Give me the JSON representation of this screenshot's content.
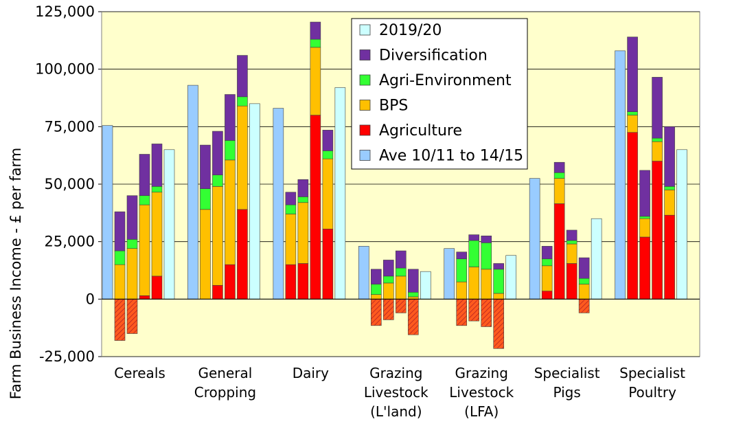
{
  "chart_data": {
    "type": "bar",
    "title": "",
    "ylabel": "Farm Business Income - £ per farm",
    "xlabel": "",
    "ylim": [
      -25000,
      125000
    ],
    "yticks": [
      -25000,
      0,
      25000,
      50000,
      75000,
      100000,
      125000
    ],
    "ytick_labels": [
      "-25,000",
      "0",
      "25,000",
      "50,000",
      "75,000",
      "100,000",
      "125,000"
    ],
    "grid": "horizontal",
    "legend_position": "top-center",
    "background_color": "#FFFFCC",
    "colors": {
      "avg": "#99CCFF",
      "agriculture": "#FF0000",
      "agriculture_negative": "#FF5A1E",
      "bps": "#FFC000",
      "agri_env": "#33FF33",
      "diversification": "#7030A0",
      "y2019": "#CCFFFF"
    },
    "legend": [
      {
        "key": "y2019",
        "label": "2019/20"
      },
      {
        "key": "diversification",
        "label": "Diversification"
      },
      {
        "key": "agri_env",
        "label": "Agri-Environment"
      },
      {
        "key": "bps",
        "label": "BPS"
      },
      {
        "key": "agriculture",
        "label": "Agriculture"
      },
      {
        "key": "avg",
        "label": "Ave 10/11 to 14/15"
      }
    ],
    "groups": [
      {
        "label_lines": [
          "Cereals"
        ],
        "average_10_11_to_14_15": 75500,
        "stacks": [
          {
            "agriculture": -18000,
            "bps": 15000,
            "agri_env": 6000,
            "diversification": 17000
          },
          {
            "agriculture": -15000,
            "bps": 22000,
            "agri_env": 4000,
            "diversification": 19000
          },
          {
            "agriculture": 1500,
            "bps": 39500,
            "agri_env": 4000,
            "diversification": 18000
          },
          {
            "agriculture": 10000,
            "bps": 36500,
            "agri_env": 2500,
            "diversification": 18500
          }
        ],
        "value_2019_20": 65000
      },
      {
        "label_lines": [
          "General",
          "Cropping"
        ],
        "average_10_11_to_14_15": 93000,
        "stacks": [
          {
            "agriculture": 0,
            "bps": 39000,
            "agri_env": 9000,
            "diversification": 19000
          },
          {
            "agriculture": 6000,
            "bps": 43000,
            "agri_env": 5000,
            "diversification": 19000
          },
          {
            "agriculture": 15000,
            "bps": 45500,
            "agri_env": 8500,
            "diversification": 20000
          },
          {
            "agriculture": 39000,
            "bps": 45000,
            "agri_env": 4000,
            "diversification": 18000
          }
        ],
        "value_2019_20": 85000
      },
      {
        "label_lines": [
          "Dairy"
        ],
        "average_10_11_to_14_15": 83000,
        "stacks": [
          {
            "agriculture": 15000,
            "bps": 22000,
            "agri_env": 4000,
            "diversification": 5500
          },
          {
            "agriculture": 15500,
            "bps": 26500,
            "agri_env": 2500,
            "diversification": 7500
          },
          {
            "agriculture": 80000,
            "bps": 29500,
            "agri_env": 3500,
            "diversification": 7500
          },
          {
            "agriculture": 30500,
            "bps": 30500,
            "agri_env": 3500,
            "diversification": 9000
          }
        ],
        "value_2019_20": 92000
      },
      {
        "label_lines": [
          "Grazing",
          "Livestock",
          "(L'land)"
        ],
        "average_10_11_to_14_15": 23000,
        "stacks": [
          {
            "agriculture": -11500,
            "bps": 2000,
            "agri_env": 4500,
            "diversification": 6500
          },
          {
            "agriculture": -9000,
            "bps": 7000,
            "agri_env": 3000,
            "diversification": 7000
          },
          {
            "agriculture": -6000,
            "bps": 10000,
            "agri_env": 3500,
            "diversification": 7500
          },
          {
            "agriculture": -15500,
            "bps": 1000,
            "agri_env": 2000,
            "diversification": 10000
          }
        ],
        "value_2019_20": 12000
      },
      {
        "label_lines": [
          "Grazing",
          "Livestock",
          "(LFA)"
        ],
        "average_10_11_to_14_15": 22000,
        "stacks": [
          {
            "agriculture": -11500,
            "bps": 7500,
            "agri_env": 10000,
            "diversification": 3000
          },
          {
            "agriculture": -9500,
            "bps": 14000,
            "agri_env": 11500,
            "diversification": 2500
          },
          {
            "agriculture": -12000,
            "bps": 13000,
            "agri_env": 11500,
            "diversification": 3000
          },
          {
            "agriculture": -21500,
            "bps": 2500,
            "agri_env": 10500,
            "diversification": 2500
          }
        ],
        "value_2019_20": 19000
      },
      {
        "label_lines": [
          "Specialist",
          "Pigs"
        ],
        "average_10_11_to_14_15": 52500,
        "stacks": [
          {
            "agriculture": 3500,
            "bps": 11000,
            "agri_env": 3000,
            "diversification": 5500
          },
          {
            "agriculture": 41500,
            "bps": 11000,
            "agri_env": 2500,
            "diversification": 4500
          },
          {
            "agriculture": 15500,
            "bps": 8500,
            "agri_env": 1500,
            "diversification": 4500
          },
          {
            "agriculture": -6000,
            "bps": 6500,
            "agri_env": 2500,
            "diversification": 9000
          }
        ],
        "value_2019_20": 35000
      },
      {
        "label_lines": [
          "Specialist",
          "Poultry"
        ],
        "average_10_11_to_14_15": 108000,
        "stacks": [
          {
            "agriculture": 72500,
            "bps": 7500,
            "agri_env": 1500,
            "diversification": 32500
          },
          {
            "agriculture": 27000,
            "bps": 8000,
            "agri_env": 1000,
            "diversification": 20000
          },
          {
            "agriculture": 60000,
            "bps": 8500,
            "agri_env": 1500,
            "diversification": 26500
          },
          {
            "agriculture": 36500,
            "bps": 11000,
            "agri_env": 1500,
            "diversification": 26000
          }
        ],
        "value_2019_20": 65000
      }
    ]
  }
}
